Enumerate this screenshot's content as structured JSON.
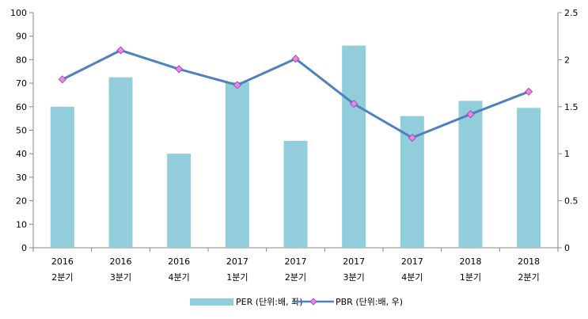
{
  "chart_data": {
    "type": "bar",
    "categories": [
      [
        "2016",
        "2분기"
      ],
      [
        "2016",
        "3분기"
      ],
      [
        "2016",
        "4분기"
      ],
      [
        "2017",
        "1분기"
      ],
      [
        "2017",
        "2분기"
      ],
      [
        "2017",
        "3분기"
      ],
      [
        "2017",
        "4분기"
      ],
      [
        "2018",
        "1분기"
      ],
      [
        "2018",
        "2분기"
      ]
    ],
    "series": [
      {
        "name": "PER (단위:배, 좌)",
        "type": "bar",
        "axis": "left",
        "color": "#92cddc",
        "values": [
          60,
          72.5,
          40,
          70.5,
          45.5,
          86,
          56,
          62.5,
          59.5
        ]
      },
      {
        "name": "PBR (단위:배, 우)",
        "type": "line",
        "axis": "right",
        "color": "#4f81bd",
        "marker_color": "#ee82ee",
        "values": [
          1.79,
          2.1,
          1.9,
          1.73,
          2.01,
          1.53,
          1.17,
          1.42,
          1.66
        ]
      }
    ],
    "y_left": {
      "min": 0,
      "max": 100,
      "ticks": [
        "0",
        "10",
        "20",
        "30",
        "40",
        "50",
        "60",
        "70",
        "80",
        "90",
        "100"
      ]
    },
    "y_right": {
      "min": 0,
      "max": 2.5,
      "ticks": [
        "0",
        "0.5",
        "1",
        "1.5",
        "2",
        "2.5"
      ]
    },
    "title": "",
    "xlabel": "",
    "ylabel": "",
    "grid": false,
    "legend_position": "bottom"
  }
}
